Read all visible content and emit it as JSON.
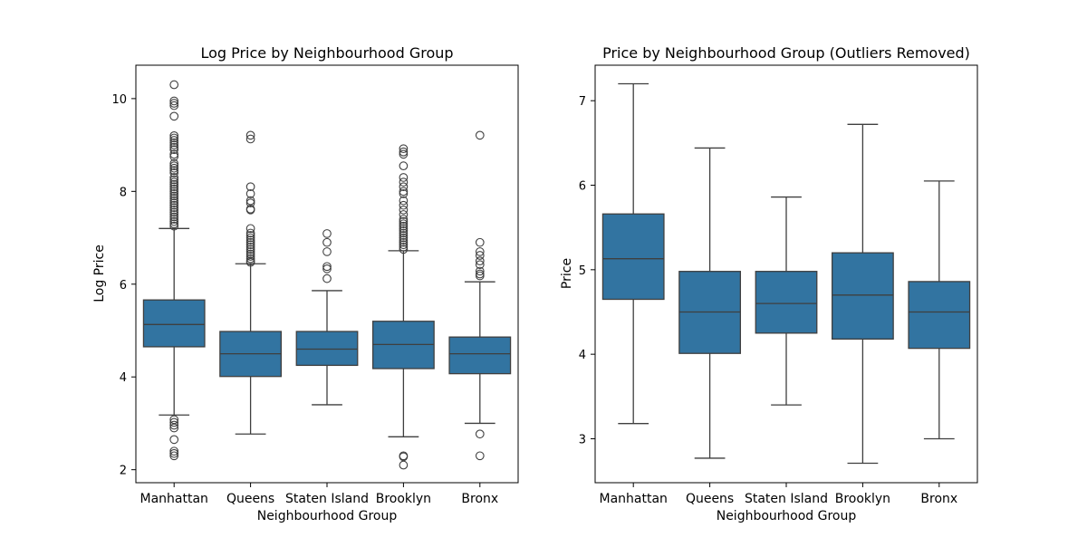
{
  "chart_data": [
    {
      "type": "box",
      "title": "Log Price by Neighbourhood Group",
      "xlabel": "Neighbourhood Group",
      "ylabel": "Log Price",
      "ylim": [
        1.72,
        10.72
      ],
      "yticks": [
        2,
        4,
        6,
        8,
        10
      ],
      "categories": [
        "Manhattan",
        "Queens",
        "Staten Island",
        "Brooklyn",
        "Bronx"
      ],
      "color": "#3274a1",
      "boxes": [
        {
          "q1": 4.65,
          "median": 5.13,
          "q3": 5.66,
          "whisker_low": 3.18,
          "whisker_high": 7.2,
          "outliers": [
            10.3,
            9.95,
            9.9,
            9.85,
            9.62,
            9.2,
            9.15,
            9.1,
            9.05,
            9.0,
            8.95,
            8.9,
            8.8,
            8.75,
            8.6,
            8.55,
            8.5,
            8.45,
            8.4,
            8.3,
            8.25,
            8.2,
            8.15,
            8.1,
            8.05,
            8.0,
            7.95,
            7.9,
            7.85,
            7.8,
            7.75,
            7.7,
            7.65,
            7.6,
            7.55,
            7.5,
            7.45,
            7.4,
            7.35,
            7.3,
            7.25,
            3.08,
            3.02,
            2.96,
            2.9,
            2.65,
            2.4,
            2.35,
            2.3
          ]
        },
        {
          "q1": 4.01,
          "median": 4.5,
          "q3": 4.98,
          "whisker_low": 2.77,
          "whisker_high": 6.44,
          "outliers": [
            9.21,
            9.13,
            8.1,
            7.95,
            7.8,
            7.75,
            7.62,
            7.6,
            7.2,
            7.1,
            7.05,
            7.0,
            6.95,
            6.9,
            6.85,
            6.8,
            6.75,
            6.7,
            6.65,
            6.6,
            6.55,
            6.5,
            6.47
          ]
        },
        {
          "q1": 4.25,
          "median": 4.6,
          "q3": 4.98,
          "whisker_low": 3.4,
          "whisker_high": 5.86,
          "outliers": [
            7.09,
            6.9,
            6.7,
            6.38,
            6.33,
            6.12
          ]
        },
        {
          "q1": 4.18,
          "median": 4.7,
          "q3": 5.2,
          "whisker_low": 2.71,
          "whisker_high": 6.72,
          "outliers": [
            8.92,
            8.85,
            8.8,
            8.55,
            8.3,
            8.2,
            8.1,
            8.0,
            7.95,
            7.8,
            7.7,
            7.6,
            7.5,
            7.4,
            7.35,
            7.3,
            7.25,
            7.2,
            7.15,
            7.1,
            7.05,
            7.0,
            6.95,
            6.9,
            6.85,
            6.8,
            6.75,
            2.3,
            2.28,
            2.1
          ]
        },
        {
          "q1": 4.07,
          "median": 4.5,
          "q3": 4.86,
          "whisker_low": 3.0,
          "whisker_high": 6.05,
          "outliers": [
            9.21,
            6.9,
            6.7,
            6.62,
            6.5,
            6.42,
            6.28,
            6.22,
            6.18,
            2.77,
            2.3
          ]
        }
      ]
    },
    {
      "type": "box",
      "title": "Price by Neighbourhood Group (Outliers Removed)",
      "xlabel": "Neighbourhood Group",
      "ylabel": "Price",
      "ylim": [
        2.48,
        7.42
      ],
      "yticks": [
        3,
        4,
        5,
        6,
        7
      ],
      "categories": [
        "Manhattan",
        "Queens",
        "Staten Island",
        "Brooklyn",
        "Bronx"
      ],
      "color": "#3274a1",
      "boxes": [
        {
          "q1": 4.65,
          "median": 5.13,
          "q3": 5.66,
          "whisker_low": 3.18,
          "whisker_high": 7.2,
          "outliers": []
        },
        {
          "q1": 4.01,
          "median": 4.5,
          "q3": 4.98,
          "whisker_low": 2.77,
          "whisker_high": 6.44,
          "outliers": []
        },
        {
          "q1": 4.25,
          "median": 4.6,
          "q3": 4.98,
          "whisker_low": 3.4,
          "whisker_high": 5.86,
          "outliers": []
        },
        {
          "q1": 4.18,
          "median": 4.7,
          "q3": 5.2,
          "whisker_low": 2.71,
          "whisker_high": 6.72,
          "outliers": []
        },
        {
          "q1": 4.07,
          "median": 4.5,
          "q3": 4.86,
          "whisker_low": 3.0,
          "whisker_high": 6.05,
          "outliers": []
        }
      ]
    }
  ]
}
